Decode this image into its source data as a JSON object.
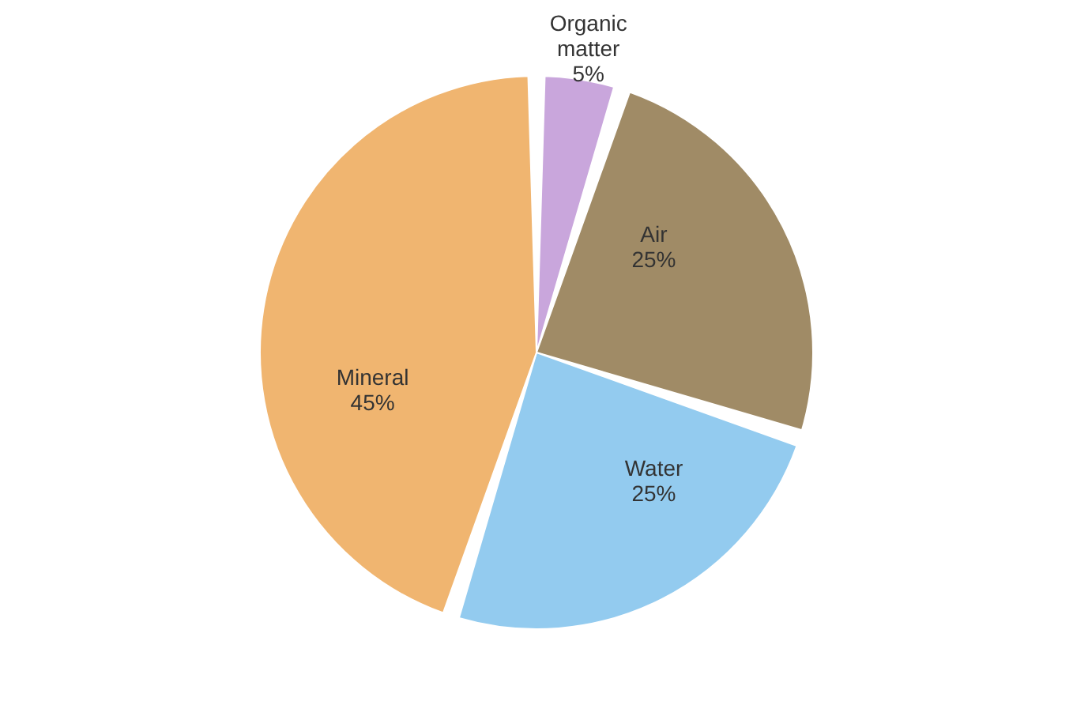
{
  "chart_data": {
    "type": "pie",
    "categories": [
      "Organic matter",
      "Air",
      "Water",
      "Mineral"
    ],
    "values": [
      5,
      25,
      25,
      45
    ],
    "value_labels": [
      "5%",
      "25%",
      "25%",
      "45%"
    ],
    "colors": [
      "#c9a6dc",
      "#a08b66",
      "#93cbef",
      "#f0b570"
    ]
  }
}
